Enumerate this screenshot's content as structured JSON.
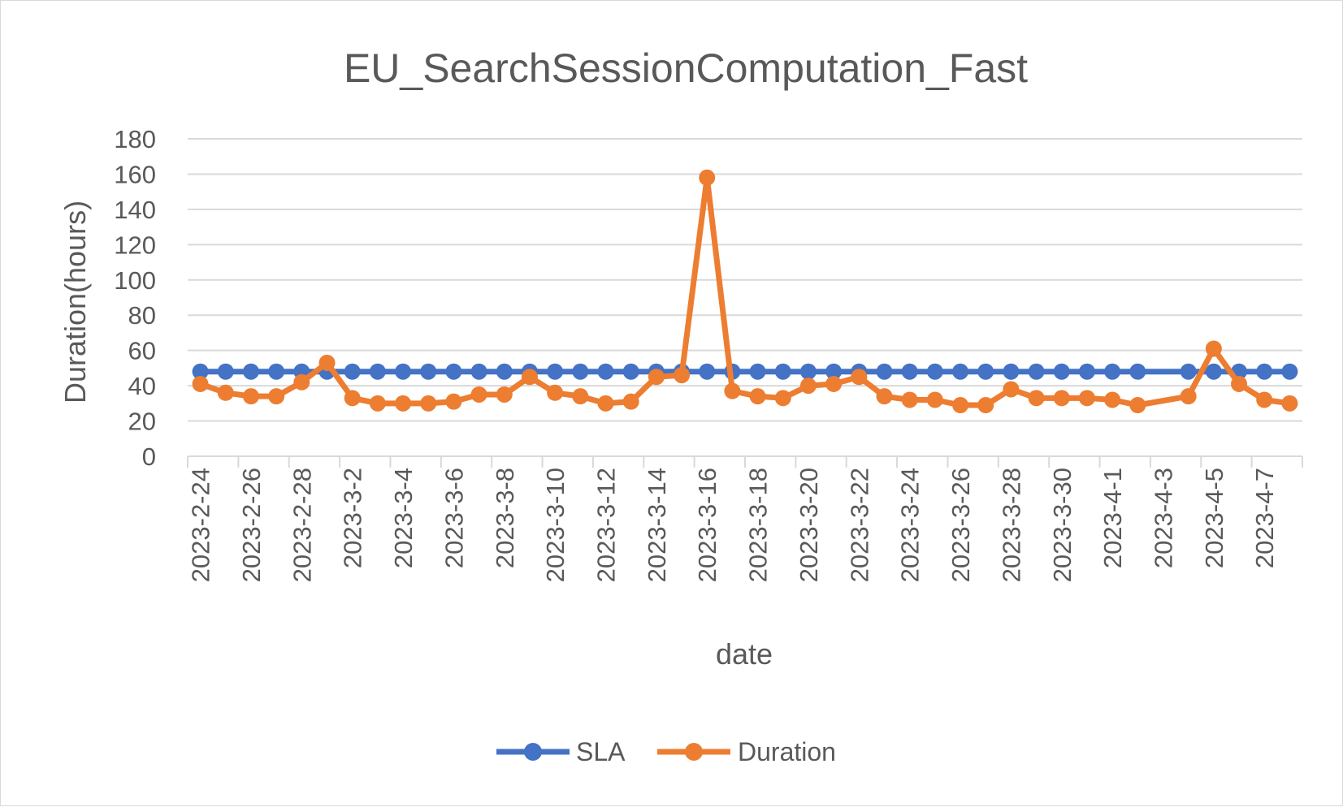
{
  "chart_data": {
    "type": "line",
    "title": "EU_SearchSessionComputation_Fast",
    "xlabel": "date",
    "ylabel": "Duration(hours)",
    "ylim": [
      0,
      180
    ],
    "yticks": [
      0,
      20,
      40,
      60,
      80,
      100,
      120,
      140,
      160,
      180
    ],
    "grid": true,
    "legend_position": "bottom",
    "x": [
      "2023-2-24",
      "2023-2-25",
      "2023-2-26",
      "2023-2-27",
      "2023-2-28",
      "2023-3-1",
      "2023-3-2",
      "2023-3-3",
      "2023-3-4",
      "2023-3-5",
      "2023-3-6",
      "2023-3-7",
      "2023-3-8",
      "2023-3-9",
      "2023-3-10",
      "2023-3-11",
      "2023-3-12",
      "2023-3-13",
      "2023-3-14",
      "2023-3-15",
      "2023-3-16",
      "2023-3-17",
      "2023-3-18",
      "2023-3-19",
      "2023-3-20",
      "2023-3-21",
      "2023-3-22",
      "2023-3-23",
      "2023-3-24",
      "2023-3-25",
      "2023-3-26",
      "2023-3-27",
      "2023-3-28",
      "2023-3-29",
      "2023-3-30",
      "2023-3-31",
      "2023-4-1",
      "2023-4-2",
      "2023-4-3",
      "2023-4-4",
      "2023-4-5",
      "2023-4-6",
      "2023-4-7",
      "2023-4-8"
    ],
    "x_tick_labels": [
      "2023-2-24",
      "2023-2-26",
      "2023-2-28",
      "2023-3-2",
      "2023-3-4",
      "2023-3-6",
      "2023-3-8",
      "2023-3-10",
      "2023-3-12",
      "2023-3-14",
      "2023-3-16",
      "2023-3-18",
      "2023-3-20",
      "2023-3-22",
      "2023-3-24",
      "2023-3-26",
      "2023-3-28",
      "2023-3-30",
      "2023-4-1",
      "2023-4-3",
      "2023-4-5",
      "2023-4-7"
    ],
    "series": [
      {
        "name": "SLA",
        "color": "#4472C4",
        "values": [
          48,
          48,
          48,
          48,
          48,
          48,
          48,
          48,
          48,
          48,
          48,
          48,
          48,
          48,
          48,
          48,
          48,
          48,
          48,
          48,
          48,
          48,
          48,
          48,
          48,
          48,
          48,
          48,
          48,
          48,
          48,
          48,
          48,
          48,
          48,
          48,
          48,
          48,
          null,
          48,
          48,
          48,
          48,
          48
        ]
      },
      {
        "name": "Duration",
        "color": "#ED7D31",
        "values": [
          41,
          36,
          34,
          34,
          42,
          53,
          33,
          30,
          30,
          30,
          31,
          35,
          35,
          45,
          36,
          34,
          30,
          31,
          45,
          46,
          158,
          37,
          34,
          33,
          40,
          41,
          45,
          34,
          32,
          32,
          29,
          29,
          38,
          33,
          33,
          33,
          32,
          29,
          null,
          34,
          61,
          41,
          32,
          30
        ]
      }
    ]
  }
}
